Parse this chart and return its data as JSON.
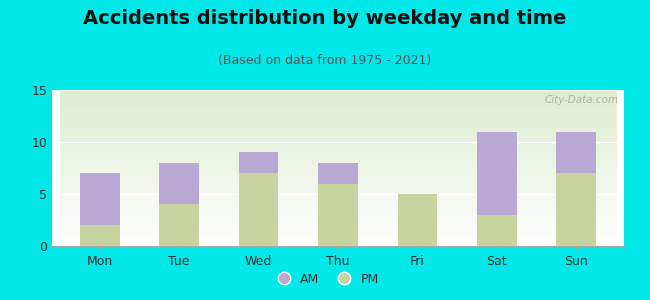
{
  "title": "Accidents distribution by weekday and time",
  "subtitle": "(Based on data from 1975 - 2021)",
  "categories": [
    "Mon",
    "Tue",
    "Wed",
    "Thu",
    "Fri",
    "Sat",
    "Sun"
  ],
  "am_values": [
    5,
    4,
    2,
    2,
    0,
    8,
    4
  ],
  "pm_values": [
    2,
    4,
    7,
    6,
    5,
    3,
    7
  ],
  "am_color": "#b8a9d4",
  "pm_color": "#c8d4a0",
  "background_color": "#00e8e8",
  "ylim": [
    0,
    15
  ],
  "yticks": [
    0,
    5,
    10,
    15
  ],
  "bar_width": 0.5,
  "title_fontsize": 14,
  "subtitle_fontsize": 9,
  "tick_fontsize": 9,
  "legend_fontsize": 9,
  "watermark_text": "City-Data.com"
}
